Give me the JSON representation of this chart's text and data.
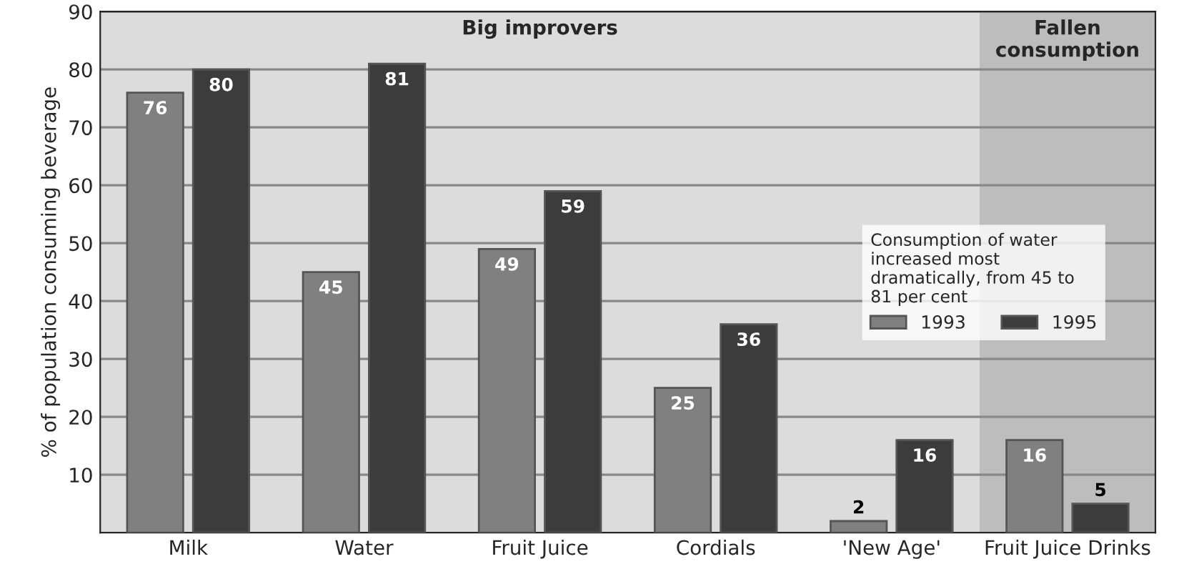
{
  "chart_data": {
    "type": "bar",
    "categories": [
      "Milk",
      "Water",
      "Fruit Juice",
      "Cordials",
      "'New Age'",
      "Fruit Juice Drinks"
    ],
    "series": [
      {
        "name": "1993",
        "color": "#808080",
        "values": [
          76,
          45,
          49,
          25,
          2,
          16
        ]
      },
      {
        "name": "1995",
        "color": "#3c3c3c",
        "values": [
          80,
          81,
          59,
          36,
          16,
          5
        ]
      }
    ],
    "ylabel": "% of population consuming beverage",
    "ylim": [
      0,
      90
    ],
    "yticks": [
      10,
      20,
      30,
      40,
      50,
      60,
      70,
      80,
      90
    ],
    "grid": "y",
    "data_labels": true,
    "legend": "right",
    "legend_title": "Consumption of water increased most dramatically, from 45 to 81 per cent",
    "bands": [
      {
        "axis": "x",
        "from": "Milk",
        "to": "'New Age'",
        "label": "Big improvers",
        "color": "#dcdcdc"
      },
      {
        "axis": "x",
        "from": "Fruit Juice Drinks",
        "to": "Fruit Juice Drinks",
        "label": "Fallen consumption",
        "color": "#bdbdbd"
      }
    ]
  }
}
